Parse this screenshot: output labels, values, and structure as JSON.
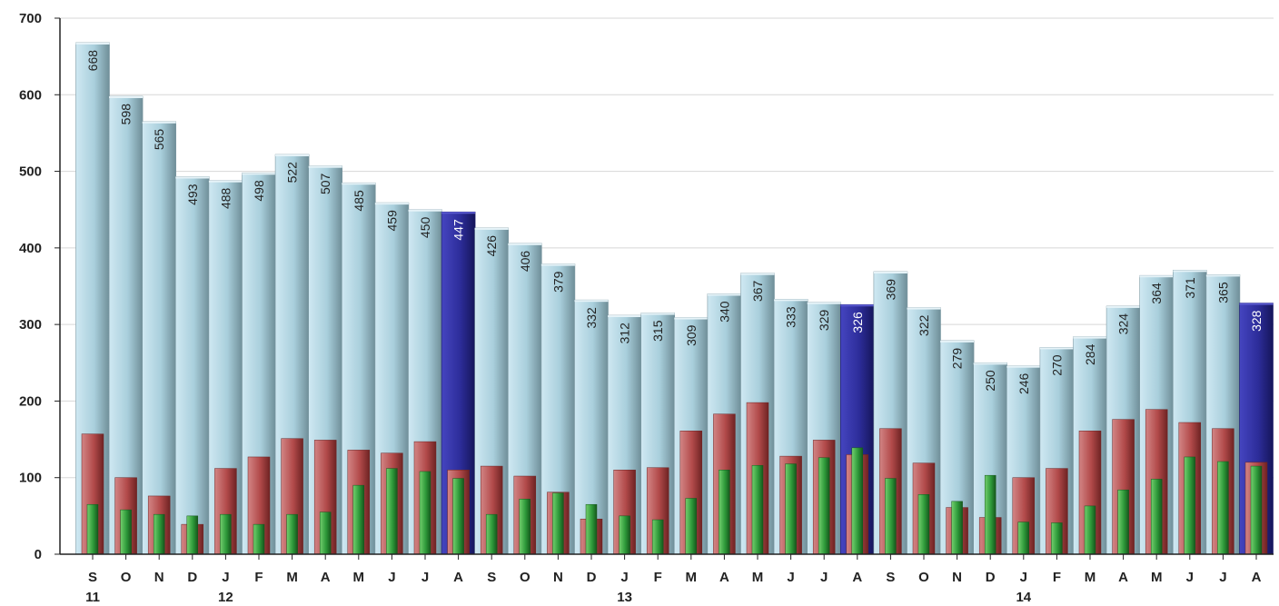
{
  "chart_data": {
    "type": "bar",
    "title": "",
    "xlabel": "",
    "ylabel": "",
    "ylim": [
      0,
      700
    ],
    "yticks": [
      0,
      100,
      200,
      300,
      400,
      500,
      600,
      700
    ],
    "grid": true,
    "categories": [
      "S",
      "O",
      "N",
      "D",
      "J",
      "F",
      "M",
      "A",
      "M",
      "J",
      "J",
      "A",
      "S",
      "O",
      "N",
      "D",
      "J",
      "F",
      "M",
      "A",
      "M",
      "J",
      "J",
      "A",
      "S",
      "O",
      "N",
      "D",
      "J",
      "F",
      "M",
      "A",
      "M",
      "J",
      "J",
      "A"
    ],
    "year_labels": [
      {
        "index": 0,
        "label": "11"
      },
      {
        "index": 4,
        "label": "12"
      },
      {
        "index": 16,
        "label": "13"
      },
      {
        "index": 28,
        "label": "14"
      }
    ],
    "highlight_indices": [
      11,
      23,
      35
    ],
    "colors": {
      "main": "#a9cfdc",
      "highlight": "#2d2d9a",
      "red": "#b24a4a",
      "green": "#2e9a3a"
    },
    "series": [
      {
        "values": [
          668,
          598,
          565,
          493,
          488,
          498,
          522,
          507,
          485,
          459,
          450,
          447,
          426,
          406,
          379,
          332,
          312,
          315,
          309,
          340,
          367,
          333,
          329,
          326,
          369,
          322,
          279,
          250,
          246,
          270,
          284,
          324,
          364,
          371,
          365,
          328
        ]
      },
      {
        "values": [
          157,
          100,
          76,
          39,
          112,
          127,
          151,
          149,
          136,
          132,
          147,
          110,
          115,
          102,
          81,
          46,
          110,
          113,
          161,
          183,
          198,
          128,
          149,
          130,
          164,
          119,
          61,
          48,
          100,
          112,
          161,
          176,
          189,
          172,
          164,
          120
        ]
      },
      {
        "values": [
          65,
          58,
          52,
          50,
          52,
          39,
          52,
          55,
          90,
          112,
          108,
          99,
          52,
          72,
          80,
          65,
          50,
          45,
          73,
          110,
          116,
          118,
          126,
          139,
          99,
          78,
          69,
          103,
          42,
          41,
          63,
          84,
          98,
          127,
          121,
          115
        ]
      }
    ]
  }
}
